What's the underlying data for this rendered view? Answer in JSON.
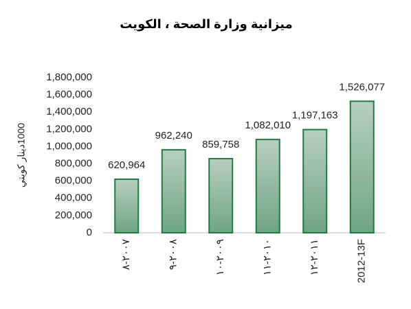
{
  "chart_data": {
    "type": "bar",
    "title": "ميزانية وزارة الصحة ، الكويت",
    "y_label": "1000دينار كويتي",
    "categories": [
      "٢٠٠٧-٨",
      "٢٠٠٨-٩",
      "٢٠٠٩-١٠",
      "٢٠١٠-١١",
      "٢٠١١-١٢",
      "2012-13F"
    ],
    "values": [
      620964,
      962240,
      859758,
      1082010,
      1197163,
      1526077
    ],
    "value_labels": [
      "620,964",
      "962,240",
      "859,758",
      "1,082,010",
      "1,197,163",
      "1,526,077"
    ],
    "color": "#6fa583",
    "edge_color": "#1e7b3f",
    "ylim": [
      0,
      1800000
    ],
    "yticks": [
      0,
      {
        "value": 200000,
        "label": "200,000"
      },
      {
        "value": 400000,
        "label": "400,000"
      },
      {
        "value": 600000,
        "label": "600,000"
      },
      {
        "value": 800000,
        "label": "800,000"
      },
      {
        "value": 1000000,
        "label": "1,000,000"
      },
      {
        "value": 1200000,
        "label": "1,200,000"
      },
      {
        "value": 1400000,
        "label": "1,400,000"
      },
      {
        "value": 1600000,
        "label": "1,600,000"
      },
      {
        "value": 1800000,
        "label": "1,800,000"
      }
    ],
    "grid": false
  }
}
